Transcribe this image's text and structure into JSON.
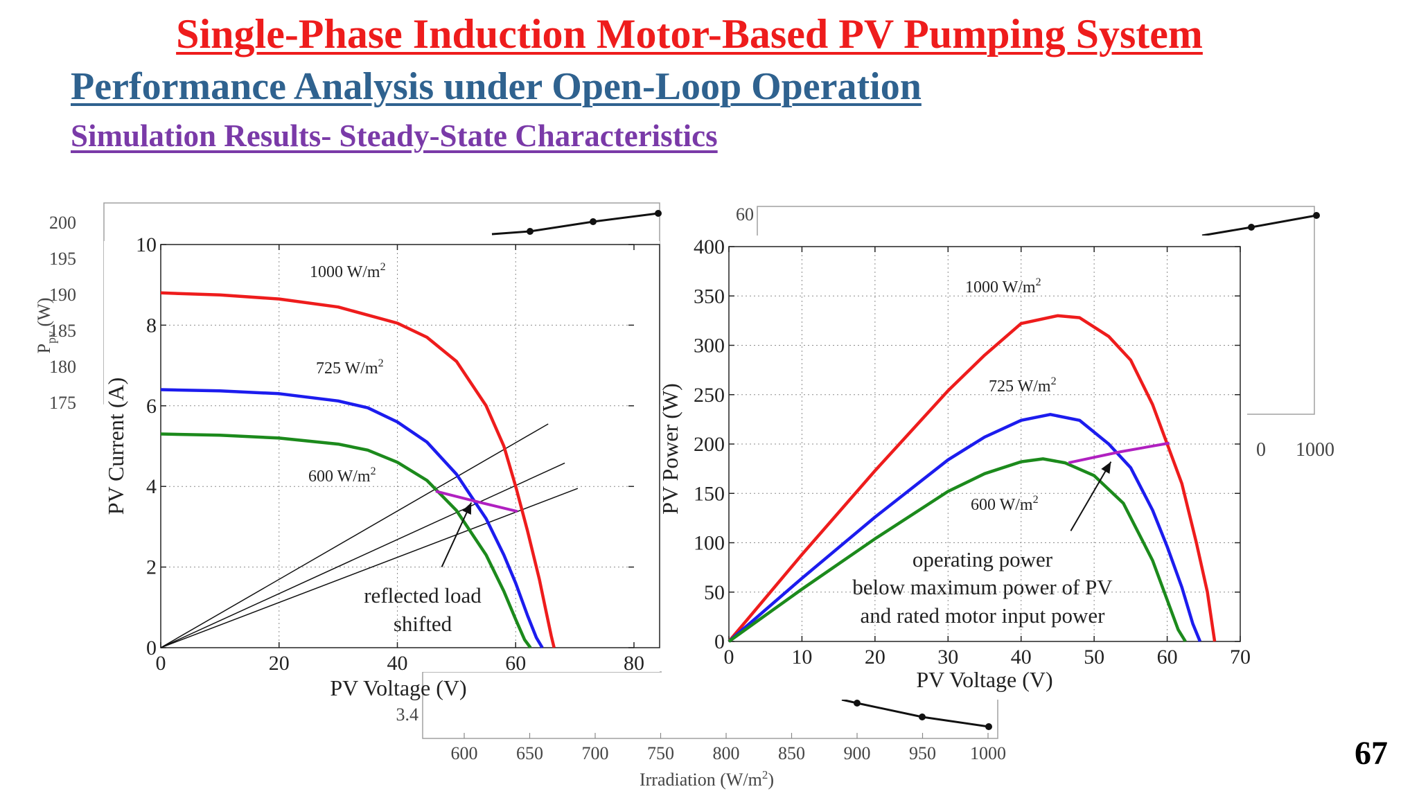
{
  "slide": {
    "title": "Single-Phase Induction Motor-Based PV Pumping System",
    "subtitle": "Performance Analysis under Open-Loop Operation",
    "section": "Simulation Results- Steady-State Characteristics",
    "page_number": "67"
  },
  "colors": {
    "title": "#ee1c1c",
    "subtitle": "#2f628f",
    "section": "#7a3aa8",
    "series_1000": "#ee1c1c",
    "series_725": "#1c1cee",
    "series_600": "#1c8a1c",
    "load_line": "#b020c0"
  },
  "chart_data": [
    {
      "type": "line",
      "xlabel": "PV Voltage (V)",
      "ylabel": "PV Current (A)",
      "xlim": [
        0,
        80
      ],
      "ylim": [
        0,
        10
      ],
      "xticks": [
        "0",
        "20",
        "40",
        "60",
        "80"
      ],
      "yticks": [
        "0",
        "2",
        "4",
        "6",
        "8",
        "10"
      ],
      "grid": true,
      "series": [
        {
          "name": "1000 W/m2",
          "label_main": "1000 W/m",
          "label_sup": "2",
          "x": [
            0,
            10,
            20,
            30,
            40,
            45,
            50,
            55,
            58,
            60,
            62,
            64,
            65,
            66,
            66.5
          ],
          "y": [
            8.8,
            8.75,
            8.65,
            8.45,
            8.05,
            7.7,
            7.1,
            6.0,
            5.0,
            4.0,
            2.9,
            1.7,
            1.0,
            0.3,
            0.0
          ]
        },
        {
          "name": "725 W/m2",
          "label_main": "725 W/m",
          "label_sup": "2",
          "x": [
            0,
            10,
            20,
            30,
            35,
            40,
            45,
            50,
            55,
            58,
            60,
            62,
            63.5,
            64.5
          ],
          "y": [
            6.4,
            6.37,
            6.3,
            6.12,
            5.95,
            5.6,
            5.1,
            4.3,
            3.2,
            2.3,
            1.6,
            0.8,
            0.25,
            0.0
          ]
        },
        {
          "name": "600 W/m2",
          "label_main": "600 W/m",
          "label_sup": "2",
          "x": [
            0,
            10,
            20,
            30,
            35,
            40,
            45,
            50,
            55,
            58,
            60,
            61.5,
            62.5
          ],
          "y": [
            5.3,
            5.27,
            5.2,
            5.05,
            4.9,
            4.6,
            4.15,
            3.4,
            2.3,
            1.4,
            0.7,
            0.2,
            0.0
          ]
        }
      ],
      "load_lines": [
        {
          "x": [
            0,
            65.5
          ],
          "y": [
            0,
            5.55
          ]
        },
        {
          "x": [
            0,
            68.3
          ],
          "y": [
            0,
            4.58
          ]
        },
        {
          "x": [
            0,
            70.5
          ],
          "y": [
            0,
            3.95
          ]
        }
      ],
      "operating_points": {
        "x": [
          46.5,
          53.5,
          60.3
        ],
        "y": [
          3.88,
          3.62,
          3.38
        ]
      },
      "annotation": {
        "line1": "reflected load",
        "line2": "shifted",
        "arrow_from": [
          47.5,
          2.0
        ],
        "arrow_to": [
          52.5,
          3.6
        ]
      }
    },
    {
      "type": "line",
      "xlabel": "PV Voltage (V)",
      "ylabel": "PV Power (W)",
      "xlim": [
        0,
        70
      ],
      "ylim": [
        0,
        400
      ],
      "xticks": [
        "0",
        "10",
        "20",
        "30",
        "40",
        "50",
        "60",
        "70"
      ],
      "yticks": [
        "0",
        "50",
        "100",
        "150",
        "200",
        "250",
        "300",
        "350",
        "400"
      ],
      "grid": true,
      "series": [
        {
          "name": "1000 W/m2",
          "label_main": "1000 W/m",
          "label_sup": "2",
          "x": [
            0,
            10,
            20,
            30,
            35,
            40,
            45,
            48,
            52,
            55,
            58,
            60,
            62,
            64,
            65.5,
            66.3,
            66.5
          ],
          "y": [
            0,
            88,
            173,
            254,
            290,
            322,
            330,
            328,
            309,
            285,
            240,
            200,
            160,
            100,
            50,
            10,
            0
          ]
        },
        {
          "name": "725 W/m2",
          "label_main": "725 W/m",
          "label_sup": "2",
          "x": [
            0,
            10,
            20,
            30,
            35,
            40,
            44,
            48,
            52,
            55,
            58,
            60,
            62,
            63.5,
            64.5
          ],
          "y": [
            0,
            64,
            126,
            184,
            207,
            224,
            230,
            224,
            200,
            176,
            133,
            96,
            55,
            18,
            0
          ]
        },
        {
          "name": "600 W/m2",
          "label_main": "600 W/m",
          "label_sup": "2",
          "x": [
            0,
            10,
            20,
            30,
            35,
            40,
            43,
            46,
            50,
            54,
            58,
            60,
            61.5,
            62.5
          ],
          "y": [
            0,
            53,
            104,
            152,
            170,
            182,
            185,
            181,
            168,
            140,
            82,
            42,
            12,
            0
          ]
        }
      ],
      "operating_curve": {
        "x": [
          46.5,
          53.5,
          60.3
        ],
        "y": [
          181,
          192,
          201
        ]
      },
      "annotation": {
        "line1": "operating power",
        "line2": "below maximum power of PV",
        "line3": "and rated motor input power",
        "arrow_from": [
          46.8,
          112
        ],
        "arrow_to": [
          52.3,
          182
        ]
      }
    }
  ],
  "background_plots": {
    "top_left": {
      "ylabel_main": "P",
      "ylabel_sub": "pv",
      "ylabel_unit": "(W)",
      "yticks": [
        "200",
        "195",
        "190",
        "185",
        "180",
        "175"
      ]
    },
    "top_right": {
      "ytick_top": "60",
      "xtick_partial": "0",
      "xtick_last": "1000"
    },
    "bottom": {
      "ytick": "3.4",
      "xticks": [
        "600",
        "650",
        "700",
        "750",
        "800",
        "850",
        "900",
        "950",
        "1000"
      ],
      "xlabel_main": "Irradiation (W/m",
      "xlabel_sup": "2",
      "xlabel_end": ")"
    }
  }
}
